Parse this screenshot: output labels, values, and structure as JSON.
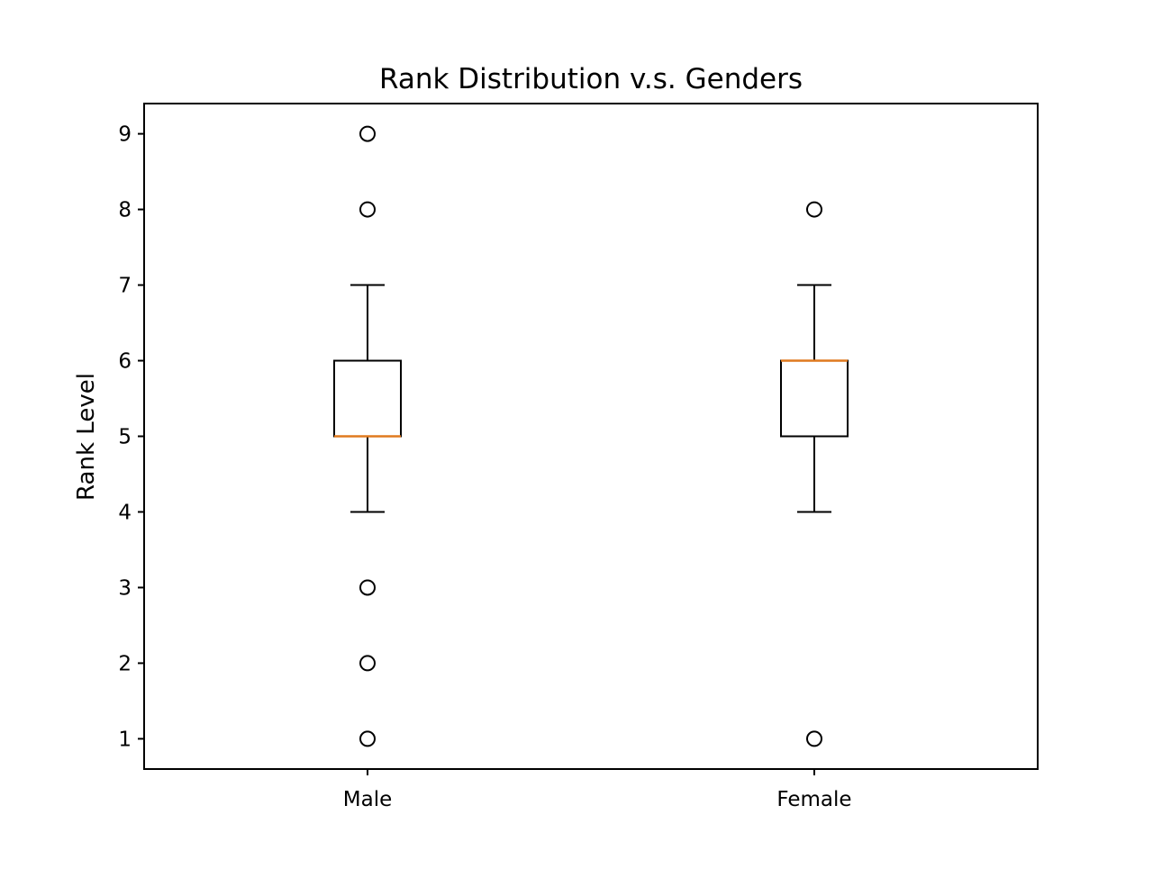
{
  "chart_data": {
    "type": "box",
    "title": "Rank Distribution v.s. Genders",
    "xlabel": "",
    "ylabel": "Rank Level",
    "categories": [
      "Male",
      "Female"
    ],
    "ylim": [
      0.6,
      9.4
    ],
    "yticks": [
      1,
      2,
      3,
      4,
      5,
      6,
      7,
      8,
      9
    ],
    "grid": false,
    "boxes": [
      {
        "category": "Male",
        "whisker_low": 4,
        "q1": 5,
        "median": 5,
        "q3": 6,
        "whisker_high": 7,
        "outliers": [
          1,
          2,
          3,
          8,
          9
        ]
      },
      {
        "category": "Female",
        "whisker_low": 4,
        "q1": 5,
        "median": 6,
        "q3": 6,
        "whisker_high": 7,
        "outliers": [
          1,
          8
        ]
      }
    ],
    "colors": {
      "box": "#000000",
      "median": "#e07a1f",
      "flier": "#000000"
    }
  }
}
